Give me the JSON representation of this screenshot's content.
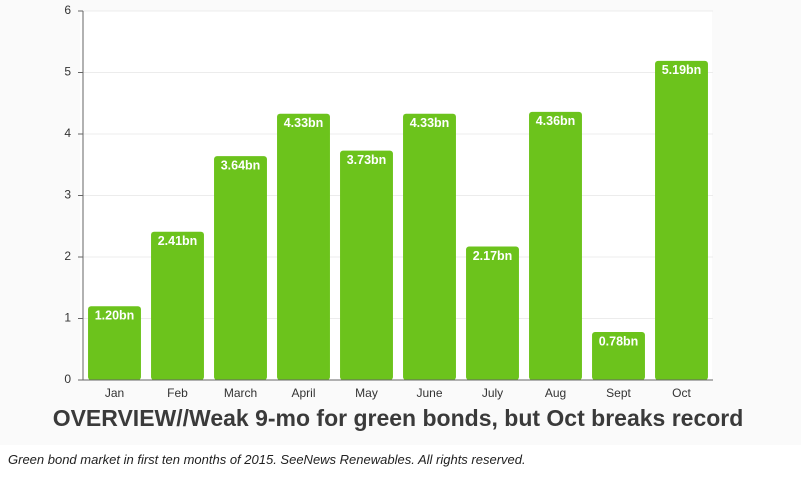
{
  "chart_data": {
    "type": "bar",
    "title": "OVERVIEW//Weak 9-mo for green bonds, but Oct breaks record",
    "categories": [
      "Jan",
      "Feb",
      "March",
      "April",
      "May",
      "June",
      "July",
      "Aug",
      "Sept",
      "Oct"
    ],
    "values": [
      1.2,
      2.41,
      3.64,
      4.33,
      3.73,
      4.33,
      2.17,
      4.36,
      0.78,
      5.19
    ],
    "value_labels": [
      "1.20bn",
      "2.41bn",
      "3.64bn",
      "4.33bn",
      "3.73bn",
      "4.33bn",
      "2.17bn",
      "4.36bn",
      "0.78bn",
      "5.19bn"
    ],
    "color": "#6cc31c",
    "ylim": [
      0,
      6
    ],
    "yticks": [
      0,
      1,
      2,
      3,
      4,
      5,
      6
    ],
    "grid": true
  },
  "caption": "Green bond market in first ten months of 2015. SeeNews Renewables. All rights reserved."
}
